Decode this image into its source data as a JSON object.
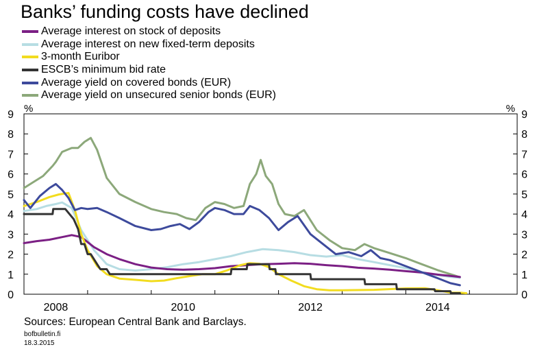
{
  "chart_data": {
    "type": "line",
    "title": "Banks’ funding costs have declined",
    "ylabel_left": "%",
    "ylabel_right": "%",
    "ylim": [
      0,
      9
    ],
    "xlim": [
      2008.0,
      2015.75
    ],
    "yticks": [
      0,
      1,
      2,
      3,
      4,
      5,
      6,
      7,
      8,
      9
    ],
    "xtick_labels": [
      "2008",
      "2010",
      "2012",
      "2014"
    ],
    "grid": false,
    "legend_position": "top",
    "series": [
      {
        "name": "Average interest on stock of deposits",
        "color": "#7b1f84",
        "x": [
          2008.0,
          2008.2,
          2008.4,
          2008.6,
          2008.75,
          2008.9,
          2009.1,
          2009.3,
          2009.5,
          2009.75,
          2010.0,
          2010.25,
          2010.5,
          2010.75,
          2011.0,
          2011.25,
          2011.5,
          2011.75,
          2012.0,
          2012.25,
          2012.5,
          2012.75,
          2013.0,
          2013.25,
          2013.5,
          2013.75,
          2014.0,
          2014.25,
          2014.5,
          2014.75,
          2014.85
        ],
        "values": [
          2.55,
          2.65,
          2.72,
          2.85,
          2.95,
          2.85,
          2.35,
          2.0,
          1.75,
          1.5,
          1.33,
          1.25,
          1.22,
          1.25,
          1.3,
          1.4,
          1.45,
          1.5,
          1.52,
          1.55,
          1.52,
          1.45,
          1.4,
          1.32,
          1.28,
          1.22,
          1.15,
          1.08,
          0.98,
          0.9,
          0.86
        ]
      },
      {
        "name": "Average interest on new fixed-term deposits",
        "color": "#b7dde3",
        "x": [
          2008.0,
          2008.2,
          2008.35,
          2008.5,
          2008.6,
          2008.75,
          2008.9,
          2009.1,
          2009.3,
          2009.5,
          2009.75,
          2010.0,
          2010.25,
          2010.5,
          2010.75,
          2011.0,
          2011.25,
          2011.5,
          2011.75,
          2012.0,
          2012.25,
          2012.5,
          2012.75,
          2013.0,
          2013.25,
          2013.5,
          2013.75,
          2014.0,
          2014.25,
          2014.5,
          2014.75,
          2014.85
        ],
        "values": [
          4.15,
          4.25,
          4.4,
          4.5,
          4.58,
          4.3,
          3.2,
          2.2,
          1.5,
          1.25,
          1.18,
          1.25,
          1.35,
          1.5,
          1.6,
          1.75,
          1.9,
          2.1,
          2.25,
          2.2,
          2.1,
          1.95,
          1.88,
          1.95,
          1.75,
          1.6,
          1.45,
          1.3,
          1.1,
          0.95,
          0.85,
          0.82
        ]
      },
      {
        "name": "3-month Euribor",
        "color": "#f2dc1f",
        "x": [
          2008.0,
          2008.2,
          2008.4,
          2008.55,
          2008.7,
          2008.8,
          2008.9,
          2009.0,
          2009.15,
          2009.3,
          2009.5,
          2009.75,
          2010.0,
          2010.2,
          2010.4,
          2010.6,
          2010.8,
          2011.0,
          2011.2,
          2011.4,
          2011.55,
          2011.7,
          2011.85,
          2012.0,
          2012.2,
          2012.4,
          2012.6,
          2012.8,
          2013.0,
          2013.5,
          2014.0,
          2014.3,
          2014.5,
          2014.7,
          2014.85,
          2014.95
        ],
        "values": [
          4.4,
          4.6,
          4.85,
          4.98,
          5.05,
          4.2,
          3.0,
          2.2,
          1.4,
          1.0,
          0.78,
          0.72,
          0.65,
          0.68,
          0.8,
          0.9,
          1.0,
          1.0,
          1.2,
          1.45,
          1.55,
          1.52,
          1.35,
          1.0,
          0.68,
          0.4,
          0.25,
          0.2,
          0.2,
          0.22,
          0.29,
          0.3,
          0.2,
          0.08,
          0.08,
          0.05
        ]
      },
      {
        "name": "ESCB’s minimum bid rate",
        "color": "#333333",
        "x": [
          2008.0,
          2008.45,
          2008.46,
          2008.65,
          2008.78,
          2008.85,
          2008.9,
          2008.95,
          2009.0,
          2009.05,
          2009.15,
          2009.2,
          2009.3,
          2009.35,
          2009.4,
          2010.0,
          2011.25,
          2011.26,
          2011.5,
          2011.51,
          2011.85,
          2011.86,
          2011.95,
          2011.96,
          2012.5,
          2012.51,
          2013.35,
          2013.36,
          2013.85,
          2013.86,
          2014.45,
          2014.46,
          2014.7,
          2014.71,
          2014.85
        ],
        "values": [
          4.0,
          4.0,
          4.25,
          4.25,
          3.75,
          3.25,
          2.5,
          2.5,
          2.0,
          2.0,
          1.5,
          1.25,
          1.25,
          1.0,
          1.0,
          1.0,
          1.0,
          1.25,
          1.25,
          1.5,
          1.5,
          1.25,
          1.25,
          1.0,
          1.0,
          0.75,
          0.75,
          0.5,
          0.5,
          0.25,
          0.25,
          0.15,
          0.15,
          0.05,
          0.05
        ]
      },
      {
        "name": "Average yield on covered bonds (EUR)",
        "color": "#3d4a9c",
        "x": [
          2008.0,
          2008.1,
          2008.25,
          2008.4,
          2008.5,
          2008.6,
          2008.7,
          2008.8,
          2008.9,
          2009.0,
          2009.15,
          2009.3,
          2009.5,
          2009.75,
          2010.0,
          2010.15,
          2010.3,
          2010.45,
          2010.6,
          2010.75,
          2010.9,
          2011.0,
          2011.15,
          2011.3,
          2011.45,
          2011.55,
          2011.7,
          2011.85,
          2012.0,
          2012.15,
          2012.3,
          2012.5,
          2012.7,
          2012.9,
          2013.1,
          2013.3,
          2013.45,
          2013.6,
          2013.75,
          2014.0,
          2014.25,
          2014.5,
          2014.7,
          2014.85
        ],
        "values": [
          4.7,
          4.3,
          4.9,
          5.3,
          5.5,
          5.2,
          4.8,
          4.2,
          4.3,
          4.25,
          4.3,
          4.1,
          3.8,
          3.4,
          3.2,
          3.25,
          3.4,
          3.5,
          3.25,
          3.6,
          4.1,
          4.3,
          4.2,
          4.0,
          4.0,
          4.4,
          4.2,
          3.8,
          3.2,
          3.6,
          3.9,
          3.0,
          2.5,
          2.0,
          2.1,
          1.9,
          2.2,
          1.8,
          1.7,
          1.4,
          1.1,
          0.8,
          0.55,
          0.45
        ]
      },
      {
        "name": "Average yield on unsecured senior bonds (EUR)",
        "color": "#8ca87a",
        "x": [
          2008.0,
          2008.15,
          2008.3,
          2008.45,
          2008.5,
          2008.6,
          2008.75,
          2008.85,
          2008.95,
          2009.05,
          2009.15,
          2009.3,
          2009.5,
          2009.75,
          2010.0,
          2010.2,
          2010.4,
          2010.55,
          2010.7,
          2010.85,
          2011.0,
          2011.15,
          2011.3,
          2011.45,
          2011.55,
          2011.65,
          2011.72,
          2011.8,
          2011.9,
          2012.0,
          2012.1,
          2012.25,
          2012.4,
          2012.6,
          2012.8,
          2013.0,
          2013.2,
          2013.35,
          2013.5,
          2013.7,
          2014.0,
          2014.25,
          2014.5,
          2014.75,
          2014.85
        ],
        "values": [
          5.3,
          5.6,
          5.9,
          6.4,
          6.6,
          7.1,
          7.3,
          7.3,
          7.6,
          7.8,
          7.2,
          5.8,
          5.0,
          4.6,
          4.25,
          4.1,
          4.0,
          3.8,
          3.7,
          4.3,
          4.6,
          4.5,
          4.3,
          4.4,
          5.5,
          6.0,
          6.7,
          5.9,
          5.5,
          4.5,
          4.0,
          3.9,
          4.2,
          3.2,
          2.7,
          2.3,
          2.2,
          2.5,
          2.3,
          2.1,
          1.8,
          1.5,
          1.2,
          0.95,
          0.85
        ]
      }
    ]
  },
  "footer": {
    "source": "Sources: European Central Bank and Barclays.",
    "site": "bofbulletin.fi",
    "date": "18.3.2015"
  }
}
